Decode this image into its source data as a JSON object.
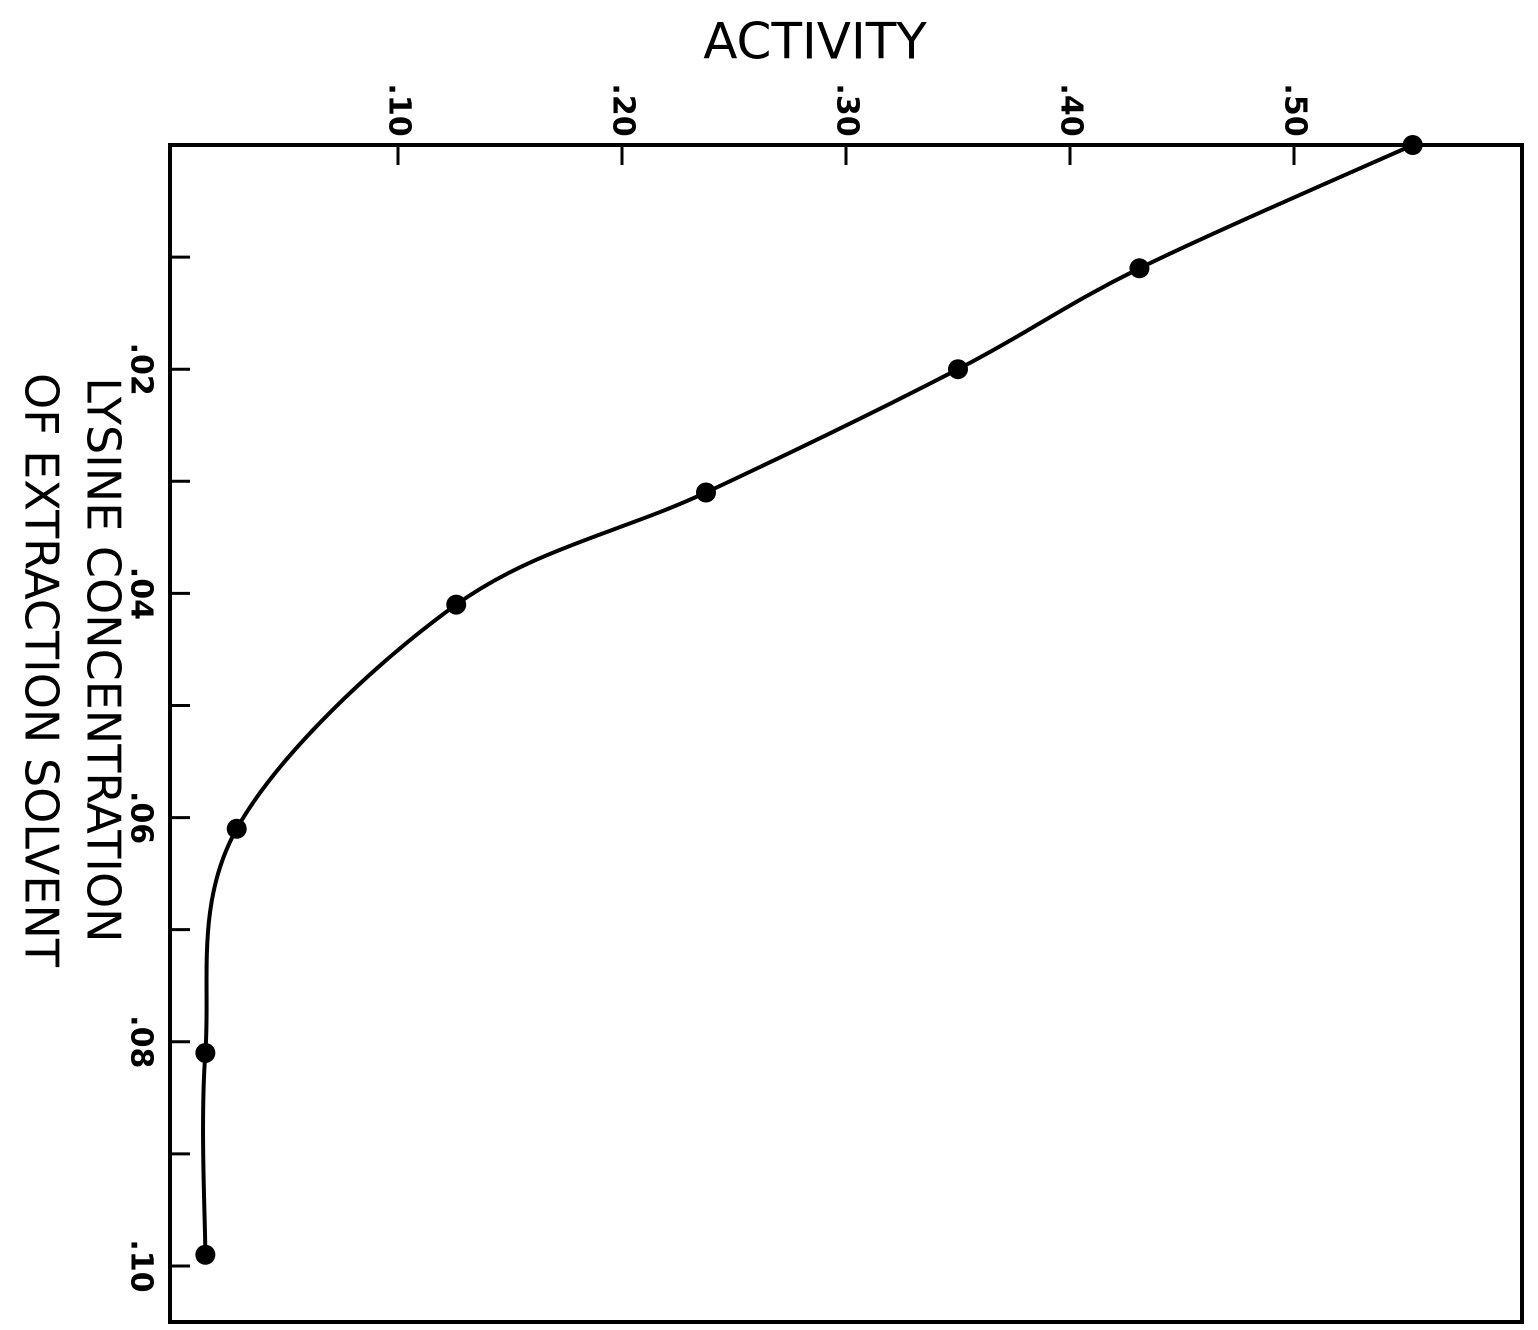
{
  "chart_data": {
    "type": "line",
    "title": "ACTIVITY",
    "y_label_lines": [
      "LYSINE CONCENTRATION",
      "OF EXTRACTION SOLVENT"
    ],
    "x": [
      0.553,
      0.431,
      0.35,
      0.2375,
      0.126,
      0.028,
      0.014,
      0.014
    ],
    "series": [
      {
        "color": "#000000",
        "values": [
          0,
          0.011,
          0.02,
          0.031,
          0.041,
          0.061,
          0.081,
          0.099
        ]
      }
    ],
    "xlim": [
      0,
      0.6
    ],
    "xticks": [
      {
        "value": 0.1,
        "label": ".10"
      },
      {
        "value": 0.2,
        "label": ".20"
      },
      {
        "value": 0.3,
        "label": ".30"
      },
      {
        "value": 0.4,
        "label": ".40"
      },
      {
        "value": 0.5,
        "label": ".50"
      }
    ],
    "ylim": [
      0,
      0.105
    ],
    "yticks": [
      {
        "value": 0.02,
        "label": ".02"
      },
      {
        "value": 0.04,
        "label": ".04"
      },
      {
        "value": 0.06,
        "label": ".06"
      },
      {
        "value": 0.08,
        "label": ".08"
      },
      {
        "value": 0.1,
        "label": ".10"
      }
    ],
    "yticks_minor": [
      0.01,
      0.03,
      0.05,
      0.07,
      0.09
    ],
    "y_inverted": true
  }
}
